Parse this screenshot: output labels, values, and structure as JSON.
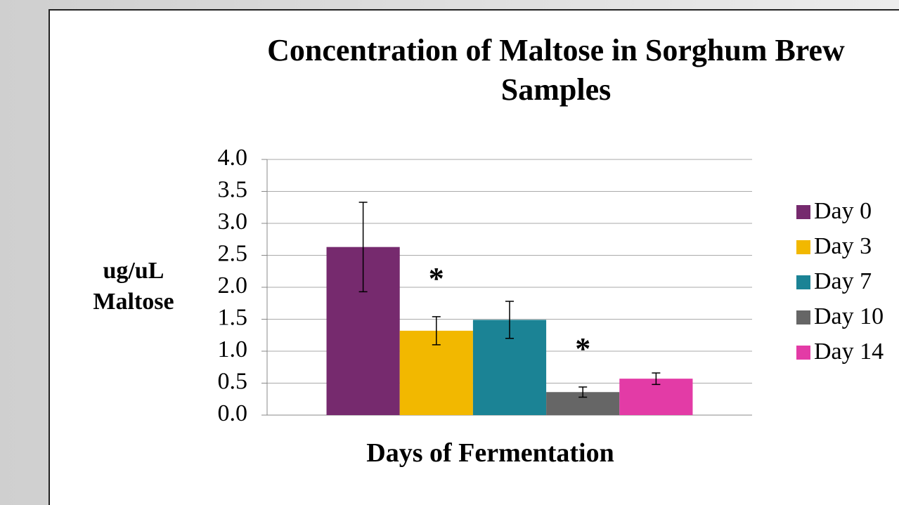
{
  "chart_data": {
    "type": "bar",
    "title": "Concentration of Maltose in Sorghum Brew Samples",
    "xlabel": "Days of Fermentation",
    "ylabel": "ug/uL Maltose",
    "categories": [
      null
    ],
    "series": [
      {
        "name": "Day 0",
        "color": "#762a6e",
        "values": [
          2.63
        ],
        "errors": [
          0.7
        ]
      },
      {
        "name": "Day 3",
        "color": "#f2b800",
        "values": [
          1.32
        ],
        "errors": [
          0.22
        ],
        "annotation": "*"
      },
      {
        "name": "Day 7",
        "color": "#1b8395",
        "values": [
          1.49
        ],
        "errors": [
          0.29
        ]
      },
      {
        "name": "Day 10",
        "color": "#666666",
        "values": [
          0.36
        ],
        "errors": [
          0.08
        ],
        "annotation": "*"
      },
      {
        "name": "Day 14",
        "color": "#e33ba6",
        "values": [
          0.57
        ],
        "errors": [
          0.09
        ]
      }
    ],
    "ylim": [
      0,
      4
    ],
    "yticks": [
      {
        "value": 0,
        "label": "0.0"
      },
      {
        "value": 0.5,
        "label": "0.5"
      },
      {
        "value": 1,
        "label": "1.0"
      },
      {
        "value": 1.5,
        "label": "1.5"
      },
      {
        "value": 2,
        "label": "2.0"
      },
      {
        "value": 2.5,
        "label": "2.5"
      },
      {
        "value": 3,
        "label": "3.0"
      },
      {
        "value": 3.5,
        "label": "3.5"
      },
      {
        "value": 4,
        "label": "4.0"
      }
    ],
    "grid": true,
    "legend": "right"
  }
}
